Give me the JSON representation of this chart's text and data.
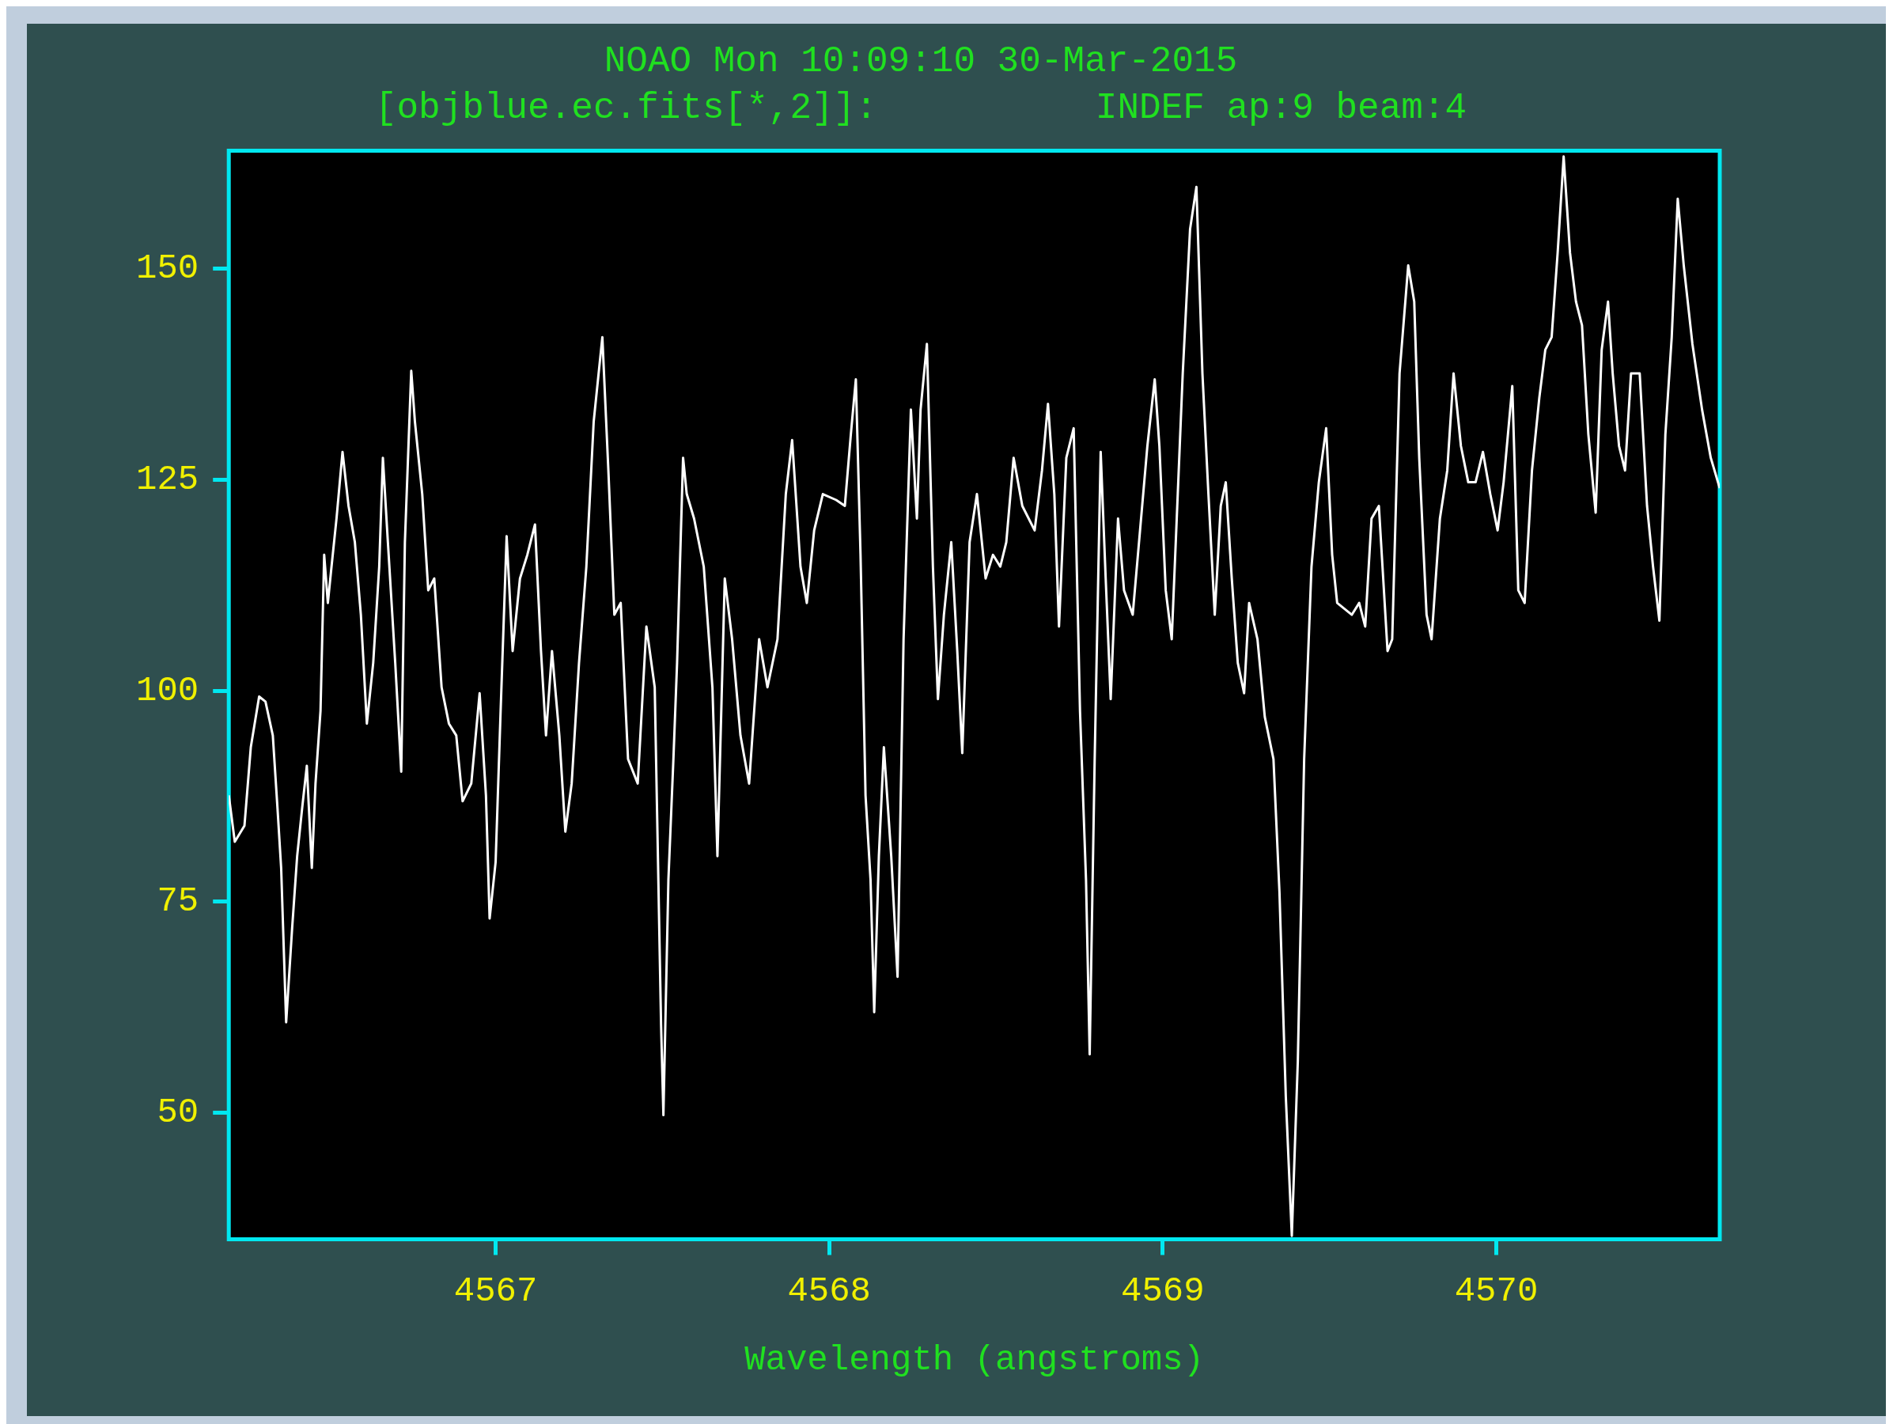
{
  "chart_data": {
    "type": "line",
    "title": "NOAO Mon 10:09:10 30-Mar-2015",
    "subtitle": "[objblue.ec.fits[*,2]]:          INDEF ap:9 beam:4",
    "xlabel": "Wavelength (angstroms)",
    "color": "#ffffff",
    "marker": "none",
    "legend": false,
    "xlim": [
      4566.2,
      4570.67
    ],
    "xticks": [
      4567,
      4568,
      4569,
      4570
    ],
    "ylim": [
      35,
      164
    ],
    "yticks": [
      50,
      75,
      100,
      125,
      150
    ],
    "x": [
      4566.2,
      4566.218,
      4566.247,
      4566.266,
      4566.291,
      4566.31,
      4566.332,
      4566.346,
      4566.357,
      4566.372,
      4566.39,
      4566.405,
      4566.42,
      4566.434,
      4566.449,
      4566.46,
      4566.475,
      4566.486,
      4566.497,
      4566.508,
      4566.523,
      4566.541,
      4566.559,
      4566.578,
      4566.596,
      4566.614,
      4566.633,
      4566.651,
      4566.662,
      4566.677,
      4566.699,
      4566.717,
      4566.728,
      4566.747,
      4566.758,
      4566.78,
      4566.798,
      4566.816,
      4566.838,
      4566.86,
      4566.882,
      4566.901,
      4566.927,
      4566.952,
      4566.971,
      4566.982,
      4567.0,
      4567.015,
      4567.033,
      4567.051,
      4567.073,
      4567.095,
      4567.118,
      4567.136,
      4567.151,
      4567.169,
      4567.191,
      4567.209,
      4567.228,
      4567.25,
      4567.272,
      4567.294,
      4567.32,
      4567.338,
      4567.356,
      4567.375,
      4567.397,
      4567.426,
      4567.452,
      4567.477,
      4567.496,
      4567.503,
      4567.518,
      4567.533,
      4567.544,
      4567.562,
      4567.573,
      4567.595,
      4567.624,
      4567.65,
      4567.665,
      4567.687,
      4567.709,
      4567.734,
      4567.76,
      4567.79,
      4567.815,
      4567.845,
      4567.87,
      4567.889,
      4567.914,
      4567.933,
      4567.955,
      4567.981,
      4568.021,
      4568.047,
      4568.065,
      4568.08,
      4568.094,
      4568.109,
      4568.124,
      4568.135,
      4568.149,
      4568.164,
      4568.186,
      4568.205,
      4568.223,
      4568.245,
      4568.263,
      4568.274,
      4568.293,
      4568.311,
      4568.326,
      4568.344,
      4568.366,
      4568.384,
      4568.399,
      4568.421,
      4568.443,
      4568.469,
      4568.491,
      4568.513,
      4568.531,
      4568.553,
      4568.579,
      4568.616,
      4568.638,
      4568.656,
      4568.675,
      4568.689,
      4568.711,
      4568.733,
      4568.752,
      4568.77,
      4568.781,
      4568.796,
      4568.814,
      4568.829,
      4568.844,
      4568.866,
      4568.884,
      4568.91,
      4568.932,
      4568.954,
      4568.976,
      4568.99,
      4569.009,
      4569.027,
      4569.042,
      4569.06,
      4569.082,
      4569.101,
      4569.119,
      4569.137,
      4569.156,
      4569.174,
      4569.189,
      4569.207,
      4569.225,
      4569.244,
      4569.259,
      4569.284,
      4569.306,
      4569.332,
      4569.35,
      4569.369,
      4569.387,
      4569.405,
      4569.424,
      4569.446,
      4569.468,
      4569.49,
      4569.508,
      4569.523,
      4569.545,
      4569.567,
      4569.589,
      4569.607,
      4569.626,
      4569.648,
      4569.674,
      4569.688,
      4569.71,
      4569.736,
      4569.754,
      4569.769,
      4569.791,
      4569.806,
      4569.831,
      4569.853,
      4569.872,
      4569.894,
      4569.916,
      4569.938,
      4569.96,
      4569.982,
      4570.004,
      4570.022,
      4570.048,
      4570.066,
      4570.085,
      4570.107,
      4570.129,
      4570.147,
      4570.166,
      4570.184,
      4570.202,
      4570.221,
      4570.239,
      4570.257,
      4570.276,
      4570.298,
      4570.316,
      4570.335,
      4570.349,
      4570.368,
      4570.386,
      4570.404,
      4570.43,
      4570.452,
      4570.47,
      4570.489,
      4570.507,
      4570.526,
      4570.544,
      4570.562,
      4570.588,
      4570.617,
      4570.643,
      4570.67
    ],
    "values": [
      87.6,
      82.1,
      84.0,
      93.3,
      99.3,
      98.7,
      94.7,
      86.1,
      79.0,
      60.7,
      71.9,
      80.4,
      86.1,
      91.1,
      79.0,
      89.0,
      97.6,
      116.1,
      110.4,
      114.7,
      120.4,
      128.3,
      121.9,
      117.6,
      109.0,
      96.1,
      103.3,
      114.7,
      127.6,
      117.6,
      103.3,
      90.4,
      117.6,
      137.9,
      131.9,
      123.3,
      111.9,
      113.3,
      100.4,
      96.1,
      94.7,
      86.9,
      89.0,
      99.7,
      87.6,
      73.0,
      79.7,
      97.6,
      118.3,
      104.7,
      113.3,
      116.1,
      119.7,
      104.7,
      94.7,
      104.7,
      94.7,
      83.3,
      89.0,
      103.3,
      114.7,
      131.9,
      141.9,
      126.1,
      109.0,
      110.4,
      91.9,
      89.0,
      107.6,
      100.4,
      60.4,
      49.7,
      77.6,
      91.9,
      103.3,
      127.6,
      123.3,
      120.4,
      114.7,
      100.4,
      80.4,
      113.3,
      106.1,
      94.7,
      89.0,
      106.1,
      100.4,
      106.1,
      123.3,
      129.7,
      114.7,
      110.4,
      119.0,
      123.3,
      122.6,
      121.9,
      130.4,
      136.9,
      116.1,
      87.6,
      77.6,
      61.9,
      80.4,
      93.3,
      80.4,
      66.1,
      106.1,
      133.3,
      120.4,
      133.3,
      141.1,
      114.7,
      99.0,
      109.0,
      117.6,
      104.7,
      92.6,
      117.6,
      123.3,
      113.3,
      116.1,
      114.7,
      117.6,
      127.6,
      121.9,
      119.0,
      126.1,
      134.0,
      123.3,
      107.6,
      127.6,
      131.1,
      97.6,
      77.6,
      56.9,
      91.9,
      128.3,
      113.3,
      99.0,
      120.4,
      111.9,
      109.0,
      119.0,
      129.0,
      136.9,
      129.0,
      111.9,
      106.1,
      120.4,
      137.6,
      154.7,
      159.7,
      137.6,
      123.3,
      109.0,
      121.9,
      124.7,
      113.3,
      103.3,
      99.7,
      110.4,
      106.1,
      96.9,
      91.9,
      76.1,
      51.9,
      35.4,
      56.1,
      91.9,
      114.7,
      124.7,
      131.1,
      116.1,
      110.4,
      109.7,
      109.0,
      110.4,
      107.6,
      120.4,
      121.9,
      104.7,
      106.1,
      137.6,
      150.4,
      146.1,
      127.6,
      109.0,
      106.1,
      120.4,
      126.1,
      137.6,
      129.0,
      124.7,
      124.7,
      128.3,
      123.3,
      119.0,
      124.7,
      136.1,
      111.9,
      110.4,
      126.1,
      134.7,
      140.4,
      141.9,
      151.9,
      163.3,
      151.9,
      146.1,
      143.3,
      130.4,
      121.1,
      140.4,
      146.1,
      137.6,
      129.0,
      126.1,
      137.6,
      137.6,
      121.9,
      114.7,
      108.3,
      130.4,
      141.9,
      158.3,
      150.4,
      141.1,
      133.3,
      127.6,
      124.0
    ]
  }
}
